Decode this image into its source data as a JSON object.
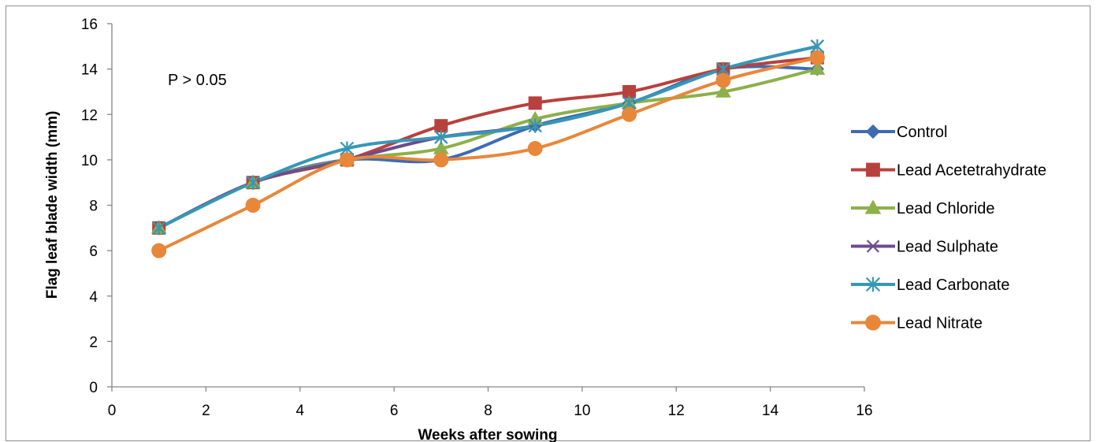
{
  "chart_data": {
    "type": "line",
    "title": "",
    "xlabel": "Weeks after sowing",
    "ylabel": "Flag leaf blade width (mm)",
    "xlim": [
      0,
      16
    ],
    "ylim": [
      0,
      16
    ],
    "xticks": [
      0,
      2,
      4,
      6,
      8,
      10,
      12,
      14,
      16
    ],
    "yticks": [
      0,
      2,
      4,
      6,
      8,
      10,
      12,
      14,
      16
    ],
    "grid": false,
    "legend_position": "right",
    "annotation": "P > 0.05",
    "x": [
      1,
      3,
      5,
      7,
      9,
      11,
      13,
      15
    ],
    "series": [
      {
        "name": "Control",
        "color": "#3D6CB3",
        "marker": "diamond",
        "values": [
          7,
          9,
          10,
          10,
          11.5,
          12.5,
          14,
          14
        ]
      },
      {
        "name": "Lead Acetetrahydrate",
        "color": "#B8413D",
        "marker": "square",
        "values": [
          7,
          9,
          10,
          11.5,
          12.5,
          13,
          14,
          14.5
        ]
      },
      {
        "name": "Lead Chloride",
        "color": "#8DB04A",
        "marker": "triangle",
        "values": [
          7,
          9,
          10,
          10.5,
          11.8,
          12.5,
          13,
          14
        ]
      },
      {
        "name": "Lead Sulphate",
        "color": "#6E4C8E",
        "marker": "x",
        "values": [
          7,
          9,
          10,
          11,
          11.5,
          12.5,
          14,
          15
        ]
      },
      {
        "name": "Lead Carbonate",
        "color": "#3598B6",
        "marker": "star",
        "values": [
          7,
          9,
          10.5,
          11,
          11.5,
          12.5,
          14,
          15
        ]
      },
      {
        "name": "Lead Nitrate",
        "color": "#E8873A",
        "marker": "circle",
        "values": [
          6,
          8,
          10,
          10,
          10.5,
          12,
          13.5,
          14.5
        ]
      }
    ]
  }
}
